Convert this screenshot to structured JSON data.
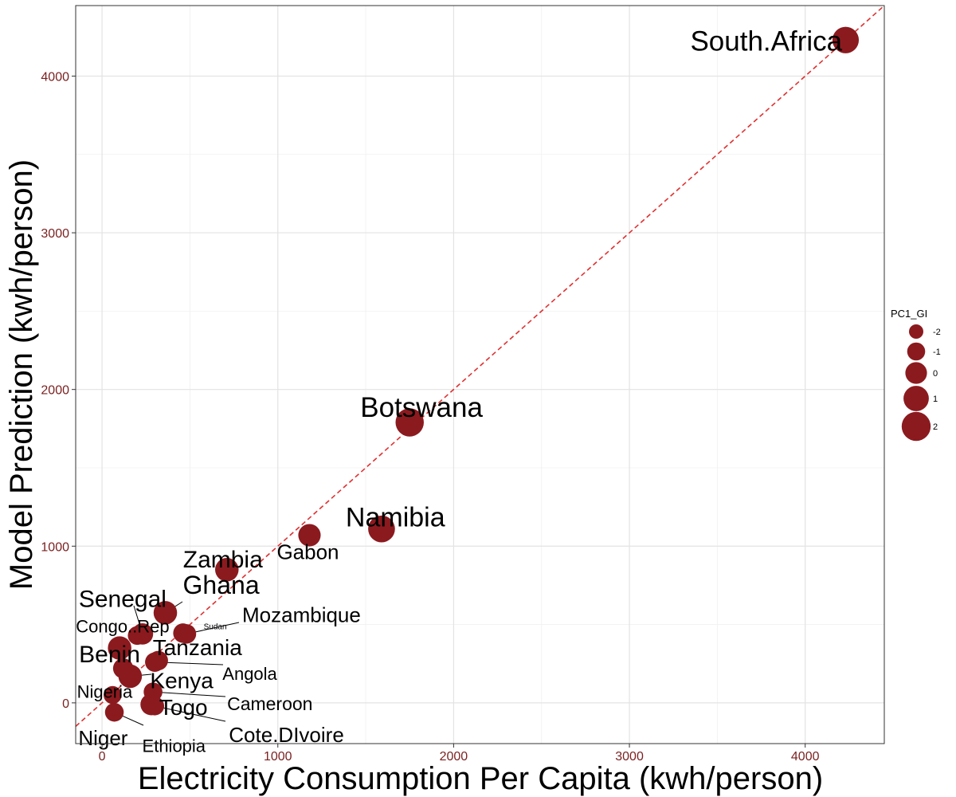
{
  "chart_data": {
    "type": "scatter",
    "title": "",
    "xlabel": "Electricity Consumption Per Capita (kwh/person)",
    "ylabel": "Model Prediction (kwh/person)",
    "xlim": [
      -150,
      4450
    ],
    "ylim": [
      -260,
      4450
    ],
    "xticks": [
      0,
      1000,
      2000,
      3000,
      4000
    ],
    "yticks": [
      0,
      1000,
      2000,
      3000,
      4000
    ],
    "grid": true,
    "reference_line": {
      "slope": 1,
      "intercept": 0,
      "style": "dashed",
      "color": "#e03030"
    },
    "point_color": "#8b1a1f",
    "size_legend": {
      "title": "PC1_GI",
      "placement": "right",
      "entries": [
        {
          "label": "-2",
          "value": -2
        },
        {
          "label": "-1",
          "value": -1
        },
        {
          "label": "0",
          "value": 0
        },
        {
          "label": "1",
          "value": 1
        },
        {
          "label": "2",
          "value": 2
        }
      ]
    },
    "points": [
      {
        "label": "South.Africa",
        "x": 4230,
        "y": 4230,
        "size": 1.3,
        "label_fs": 35
      },
      {
        "label": "Botswana",
        "x": 1750,
        "y": 1790,
        "size": 1.8,
        "label_fs": 35
      },
      {
        "label": "Namibia",
        "x": 1590,
        "y": 1110,
        "size": 1.4,
        "label_fs": 34
      },
      {
        "label": "Gabon",
        "x": 1180,
        "y": 1070,
        "size": 0.2,
        "label_fs": 26
      },
      {
        "label": "Zambia",
        "x": 710,
        "y": 850,
        "size": 0.5,
        "label_fs": 30
      },
      {
        "label": "Ghana",
        "x": 360,
        "y": 575,
        "size": 0.5,
        "label_fs": 32
      },
      {
        "label": "Senegal",
        "x": 230,
        "y": 440,
        "size": -0.1,
        "label_fs": 30
      },
      {
        "label": "Congo..Rep",
        "x": 200,
        "y": 430,
        "size": -0.8,
        "label_fs": 22
      },
      {
        "label": "Sudan",
        "x": 460,
        "y": 445,
        "size": -0.6,
        "label_fs": 10
      },
      {
        "label": "Mozambique",
        "x": 480,
        "y": 440,
        "size": -0.6,
        "label_fs": 26
      },
      {
        "label": "Tanzania",
        "x": 320,
        "y": 270,
        "size": -0.6,
        "label_fs": 28
      },
      {
        "label": "Benin",
        "x": 100,
        "y": 350,
        "size": 0.5,
        "label_fs": 30
      },
      {
        "label": "Angola",
        "x": 300,
        "y": 260,
        "size": -0.6,
        "label_fs": 22
      },
      {
        "label": "Kenya",
        "x": 160,
        "y": 170,
        "size": 0.5,
        "label_fs": 28
      },
      {
        "label": "Nigeria",
        "x": 120,
        "y": 220,
        "size": -0.4,
        "label_fs": 22
      },
      {
        "label": "Cameroon",
        "x": 290,
        "y": 70,
        "size": -0.8,
        "label_fs": 23
      },
      {
        "label": "Togo",
        "x": 280,
        "y": -10,
        "size": 0.0,
        "label_fs": 28
      },
      {
        "label": "Niger",
        "x": 60,
        "y": 50,
        "size": -1.0,
        "label_fs": 26
      },
      {
        "label": "Ethiopia",
        "x": 70,
        "y": -60,
        "size": -0.8,
        "label_fs": 22
      },
      {
        "label": "Cote.DIvoire",
        "x": 300,
        "y": -20,
        "size": -0.8,
        "label_fs": 26
      }
    ]
  }
}
